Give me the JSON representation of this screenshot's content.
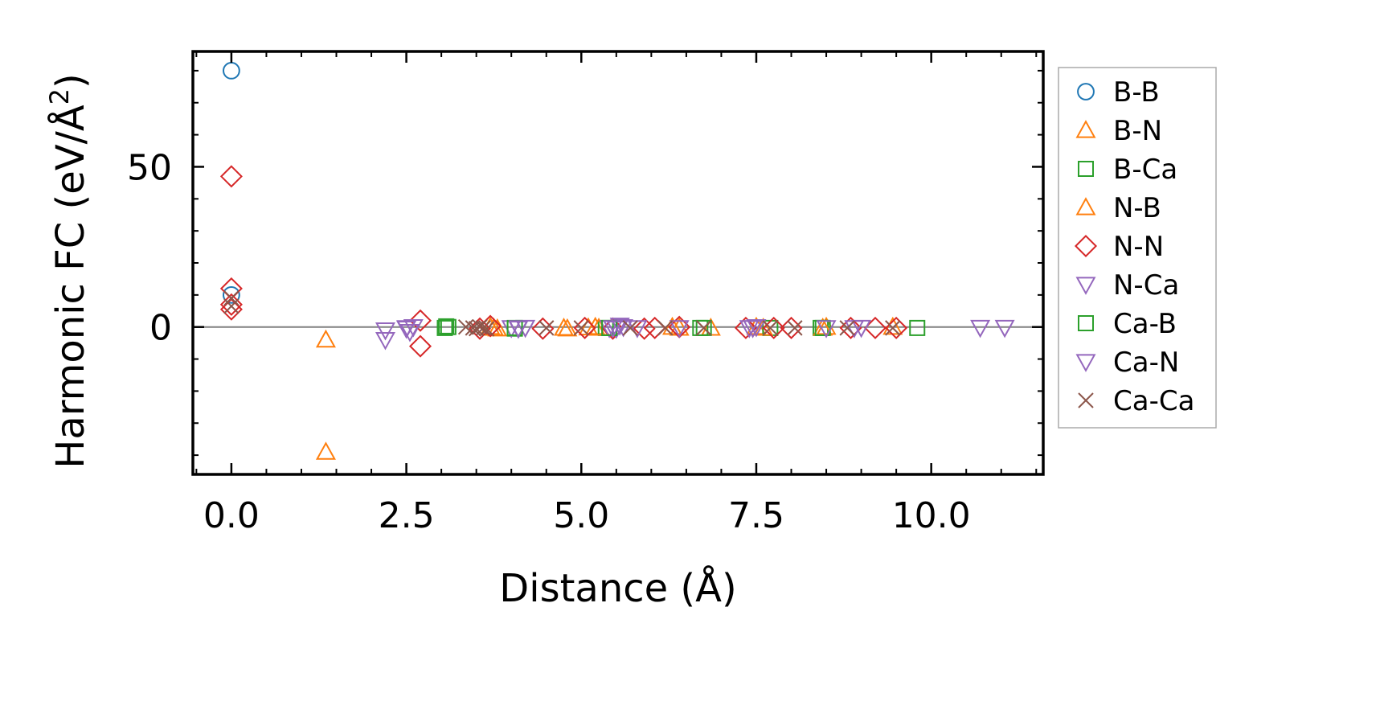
{
  "chart_data": {
    "type": "scatter",
    "title": "",
    "xlabel": "Distance (Å)",
    "ylabel_main": "Harmonic FC (eV/Å",
    "ylabel_sup": "2",
    "ylabel_close": ")",
    "xlim": [
      -0.55,
      11.6
    ],
    "ylim": [
      -46,
      86
    ],
    "xticks": [
      0.0,
      2.5,
      5.0,
      7.5,
      10.0
    ],
    "xtick_labels": [
      "0.0",
      "2.5",
      "5.0",
      "7.5",
      "10.0"
    ],
    "yticks": [
      0,
      50
    ],
    "ytick_labels": [
      "0",
      "50"
    ],
    "zero_line": true,
    "grid": false,
    "legend_position": "outside-right",
    "series": [
      {
        "name": "B-B",
        "marker": "circle",
        "color": "#1f77b4",
        "points": [
          [
            0.0,
            80
          ],
          [
            0.0,
            10
          ]
        ]
      },
      {
        "name": "B-N",
        "marker": "triangle-up",
        "color": "#ff7f0e",
        "points": [
          [
            1.35,
            -4
          ],
          [
            1.35,
            -39
          ],
          [
            3.7,
            0
          ],
          [
            3.8,
            -0.5
          ],
          [
            4.75,
            -0.3
          ],
          [
            5.1,
            -0.2
          ],
          [
            5.2,
            0
          ],
          [
            6.3,
            0
          ],
          [
            6.85,
            -0.3
          ],
          [
            7.5,
            0
          ],
          [
            8.5,
            0
          ],
          [
            9.45,
            0
          ]
        ]
      },
      {
        "name": "B-Ca",
        "marker": "square",
        "color": "#2ca02c",
        "points": [
          [
            3.05,
            -0.3
          ],
          [
            3.07,
            0.2
          ],
          [
            4.05,
            -0.5
          ],
          [
            5.35,
            -0.3
          ],
          [
            6.7,
            -0.3
          ],
          [
            7.7,
            -0.3
          ],
          [
            8.42,
            -0.3
          ],
          [
            9.8,
            -0.3
          ]
        ]
      },
      {
        "name": "N-B",
        "marker": "triangle-up",
        "color": "#ff7f0e",
        "points": [
          [
            3.75,
            -0.3
          ],
          [
            4.8,
            -0.5
          ],
          [
            5.25,
            -0.3
          ],
          [
            6.4,
            -0.3
          ],
          [
            7.6,
            -0.3
          ],
          [
            8.45,
            -0.3
          ]
        ]
      },
      {
        "name": "N-N",
        "marker": "diamond",
        "color": "#d62728",
        "points": [
          [
            0.0,
            47
          ],
          [
            0.0,
            12
          ],
          [
            0.0,
            7
          ],
          [
            0.0,
            5.5
          ],
          [
            2.7,
            2
          ],
          [
            2.7,
            -6
          ],
          [
            3.55,
            -0.5
          ],
          [
            3.7,
            0.3
          ],
          [
            4.45,
            -0.5
          ],
          [
            5.05,
            -0.3
          ],
          [
            5.45,
            -0.5
          ],
          [
            5.9,
            -0.5
          ],
          [
            6.05,
            -0.3
          ],
          [
            6.4,
            0
          ],
          [
            7.35,
            -0.3
          ],
          [
            7.75,
            -0.3
          ],
          [
            8.0,
            -0.3
          ],
          [
            8.85,
            -0.3
          ],
          [
            9.2,
            -0.3
          ],
          [
            9.5,
            -0.3
          ]
        ]
      },
      {
        "name": "N-Ca",
        "marker": "triangle-down",
        "color": "#9467bd",
        "points": [
          [
            2.2,
            -1
          ],
          [
            2.2,
            -4
          ],
          [
            2.5,
            -0.5
          ],
          [
            2.55,
            -1.5
          ],
          [
            2.6,
            0
          ],
          [
            4.0,
            -0.3
          ],
          [
            4.1,
            -0.5
          ],
          [
            4.2,
            -0.2
          ],
          [
            5.4,
            -0.3
          ],
          [
            5.5,
            -0.5
          ],
          [
            5.6,
            0
          ],
          [
            5.8,
            -0.3
          ],
          [
            6.4,
            -0.3
          ],
          [
            7.4,
            -0.3
          ],
          [
            7.5,
            0
          ],
          [
            8.9,
            -0.3
          ],
          [
            9.0,
            -0.2
          ],
          [
            10.7,
            -0.2
          ],
          [
            11.05,
            -0.2
          ]
        ]
      },
      {
        "name": "Ca-B",
        "marker": "square",
        "color": "#2ca02c",
        "points": [
          [
            3.1,
            0
          ],
          [
            4.05,
            -0.3
          ],
          [
            5.4,
            -0.3
          ],
          [
            6.75,
            -0.3
          ],
          [
            8.45,
            -0.3
          ]
        ]
      },
      {
        "name": "Ca-N",
        "marker": "triangle-down",
        "color": "#9467bd",
        "points": [
          [
            2.5,
            -0.3
          ],
          [
            4.1,
            -0.3
          ],
          [
            5.45,
            -0.3
          ],
          [
            5.55,
            0.5
          ],
          [
            7.45,
            -0.3
          ],
          [
            8.5,
            -0.3
          ]
        ]
      },
      {
        "name": "Ca-Ca",
        "marker": "x",
        "color": "#8c564b",
        "points": [
          [
            0.0,
            6.5
          ],
          [
            0.0,
            9
          ],
          [
            3.35,
            0
          ],
          [
            3.45,
            -0.3
          ],
          [
            3.5,
            -0.5
          ],
          [
            3.55,
            0
          ],
          [
            3.6,
            -0.3
          ],
          [
            3.65,
            -0.6
          ],
          [
            4.5,
            -0.3
          ],
          [
            5.0,
            -0.3
          ],
          [
            5.7,
            -0.3
          ],
          [
            6.2,
            -0.3
          ],
          [
            6.75,
            -0.3
          ],
          [
            7.7,
            -0.3
          ],
          [
            8.05,
            -0.3
          ],
          [
            8.8,
            -0.3
          ],
          [
            9.45,
            -0.3
          ]
        ]
      }
    ]
  }
}
